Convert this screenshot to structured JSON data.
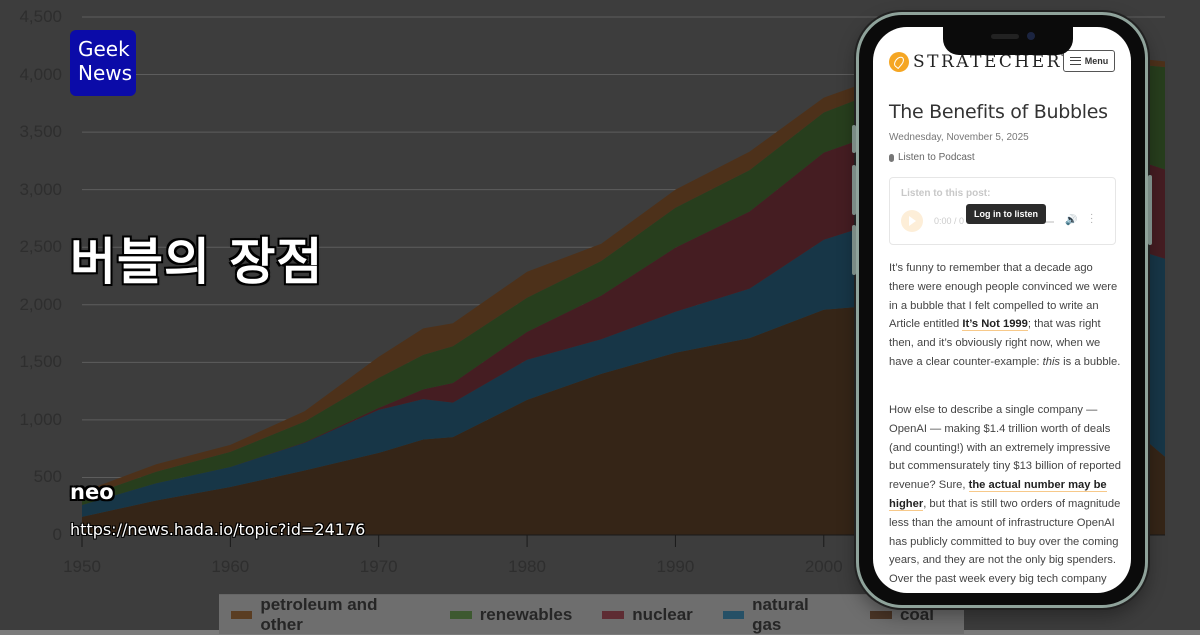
{
  "overlay": {
    "logo_line1": "Geek",
    "logo_line2": "News",
    "title": "버블의 장점",
    "author": "neo",
    "url": "https://news.hada.io/topic?id=24176"
  },
  "phone": {
    "site_name": "STRATECHERY",
    "menu_label": "Menu",
    "article_title": "The Benefits of Bubbles",
    "article_date": "Wednesday, November 5, 2025",
    "podcast_link": "Listen to Podcast",
    "player": {
      "label": "Listen to this post:",
      "time": "0:00 / 0",
      "tooltip": "Log in to listen"
    },
    "paragraph1": {
      "pre": "It’s funny to remember that a decade ago there were enough people convinced we were in a bubble that I felt compelled to write an Article entitled ",
      "link": "It’s Not 1999",
      "mid": "; that was right then, and it’s obviously right now, when we have a clear counter-example: ",
      "em": "this",
      "post": " is a bubble."
    },
    "paragraph2": {
      "pre": "How else to describe a single company — OpenAI — making $1.4 trillion worth of deals (and counting!) with an extremely impressive but commensurately tiny $13 billion of reported revenue? Sure, ",
      "link": "the actual number may be higher",
      "post": ", but that is still two orders of magnitude less than the amount of infrastructure OpenAI has publicly committed to buy over the coming years, and they are not the only big spenders. Over the past week every big tech company (except Apple) has"
    }
  },
  "chart_data": {
    "type": "area",
    "stacked": true,
    "title": "",
    "xlabel": "",
    "ylabel": "",
    "ylim": [
      0,
      4500
    ],
    "xlim": [
      1950,
      2023
    ],
    "grid": true,
    "legend_position": "bottom",
    "y_ticks": [
      "0",
      "500",
      "1,000",
      "1,500",
      "2,000",
      "2,500",
      "3,000",
      "3,500",
      "4,000",
      "4,500"
    ],
    "x_ticks": [
      "1950",
      "1960",
      "1970",
      "1980",
      "1990",
      "2000"
    ],
    "x": [
      1950,
      1955,
      1960,
      1965,
      1970,
      1973,
      1975,
      1980,
      1985,
      1990,
      1995,
      2000,
      2005,
      2007,
      2010,
      2015,
      2020,
      2021,
      2023
    ],
    "series": [
      {
        "name": "coal",
        "color": "#6b4a2e",
        "values": [
          157,
          300,
          417,
          560,
          713,
          830,
          850,
          1174,
          1400,
          1583,
          1710,
          1957,
          2010,
          2020,
          1850,
          1350,
          780,
          900,
          680
        ]
      },
      {
        "name": "natural gas",
        "color": "#2f6c8f",
        "values": [
          104,
          150,
          174,
          240,
          374,
          350,
          300,
          348,
          300,
          356,
          430,
          608,
          760,
          900,
          990,
          1350,
          1620,
          1580,
          1720
        ]
      },
      {
        "name": "nuclear",
        "color": "#8a3a44",
        "values": [
          0,
          0,
          0,
          5,
          17,
          85,
          170,
          243,
          380,
          557,
          670,
          757,
          780,
          806,
          807,
          797,
          790,
          780,
          775
        ]
      },
      {
        "name": "renewables",
        "color": "#4e7d3a",
        "values": [
          61,
          100,
          131,
          180,
          261,
          300,
          320,
          296,
          300,
          347,
          360,
          348,
          370,
          350,
          420,
          560,
          800,
          830,
          890
        ]
      },
      {
        "name": "petroleum and other",
        "color": "#9a6335",
        "values": [
          52,
          65,
          61,
          90,
          183,
          230,
          200,
          226,
          150,
          157,
          160,
          130,
          110,
          90,
          80,
          60,
          50,
          50,
          50
        ]
      }
    ]
  },
  "legend": [
    {
      "name": "petroleum and other",
      "color": "#9a6335"
    },
    {
      "name": "renewables",
      "color": "#4e7d3a"
    },
    {
      "name": "nuclear",
      "color": "#8a3a44"
    },
    {
      "name": "natural gas",
      "color": "#2f6c8f"
    },
    {
      "name": "coal",
      "color": "#6b4a2e"
    }
  ]
}
